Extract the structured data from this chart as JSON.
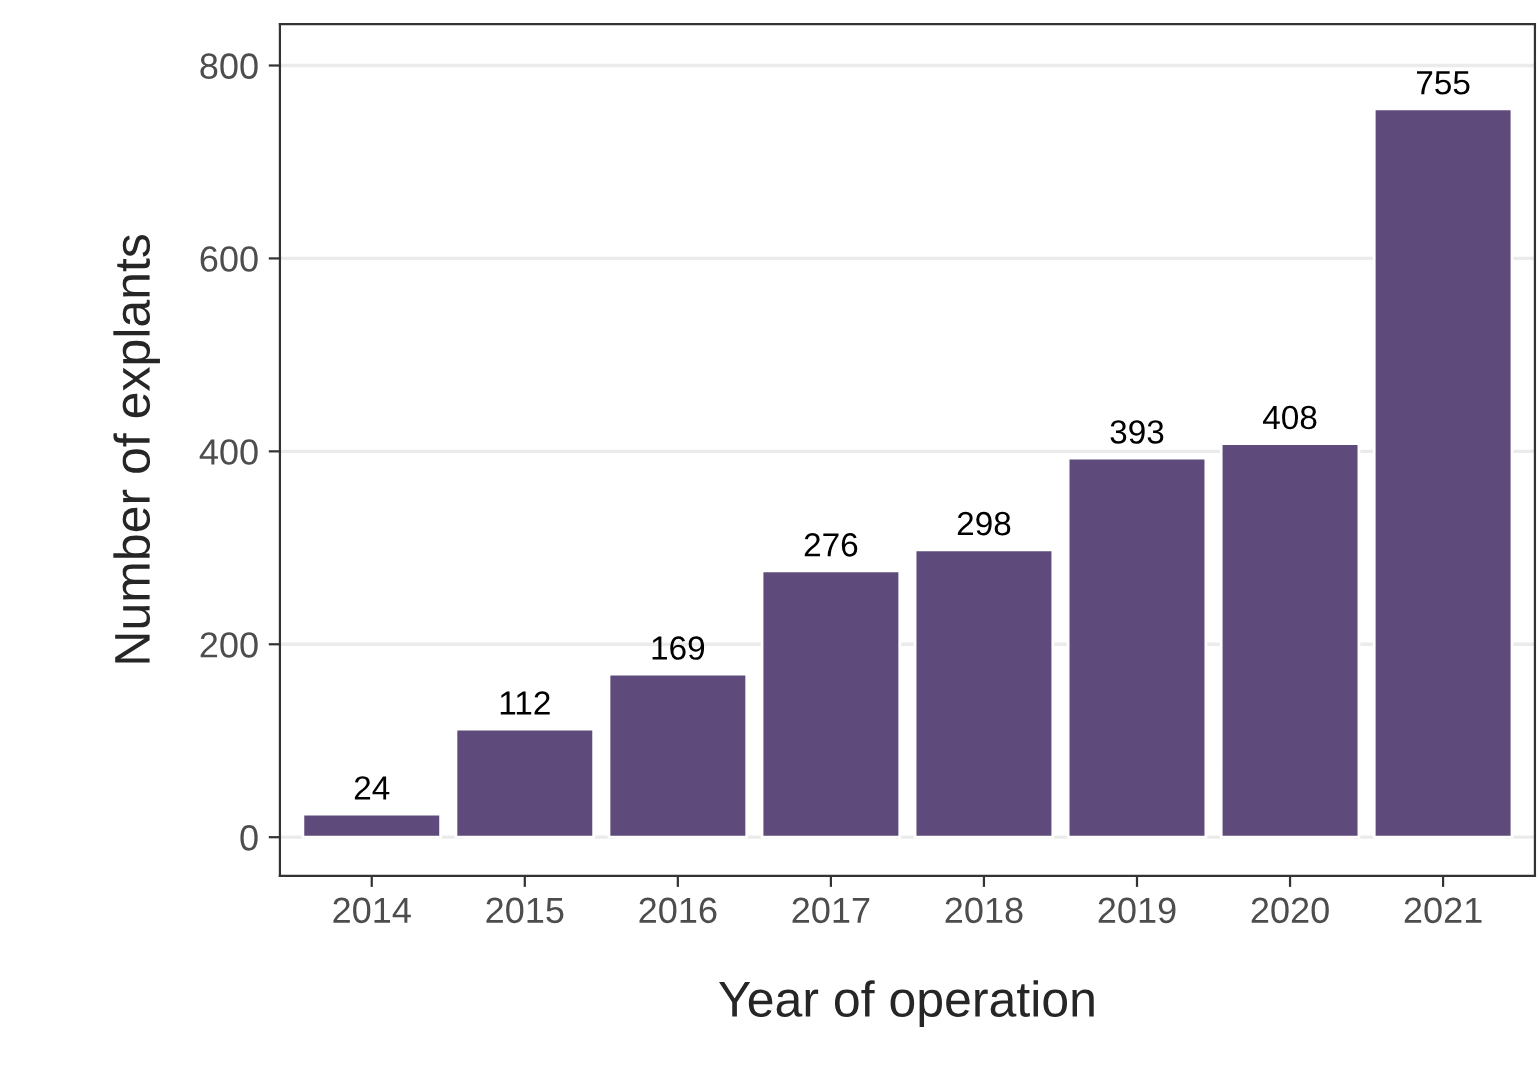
{
  "chart_data": {
    "type": "bar",
    "xlabel": "Year of operation",
    "ylabel": "Number of explants",
    "categories": [
      "2014",
      "2015",
      "2016",
      "2017",
      "2018",
      "2019",
      "2020",
      "2021"
    ],
    "values": [
      24,
      112,
      169,
      276,
      298,
      393,
      408,
      755
    ],
    "color": "#5f4b7b",
    "ylim": [
      -40,
      843
    ],
    "yticks": [
      0,
      200,
      400,
      600,
      800
    ],
    "grid": "y",
    "data_labels": true
  }
}
